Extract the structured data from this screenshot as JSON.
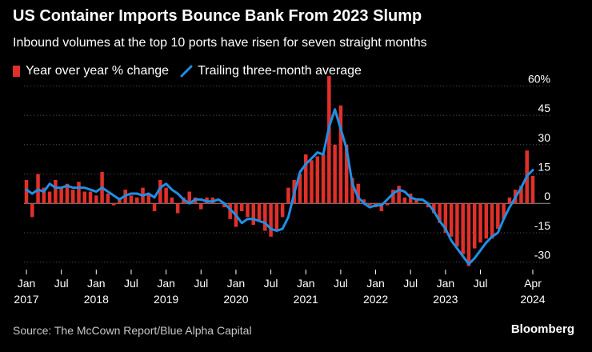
{
  "title": "US Container Imports Bounce Bank From 2023 Slump",
  "subtitle": "Inbound volumes at the top 10 ports have risen for seven straight months",
  "legend": {
    "bar_label": "Year over year % change",
    "line_label": "Trailing three-month average"
  },
  "source": "Source: The McCown Report/Blue Alpha Capital",
  "brand": "Bloomberg",
  "colors": {
    "background": "#000000",
    "bar": "#e0302a",
    "line": "#1f8fe5",
    "grid": "#555555",
    "text": "#ffffff"
  },
  "chart_data": {
    "type": "bar",
    "x": [
      "2017-01",
      "2017-02",
      "2017-03",
      "2017-04",
      "2017-05",
      "2017-06",
      "2017-07",
      "2017-08",
      "2017-09",
      "2017-10",
      "2017-11",
      "2017-12",
      "2018-01",
      "2018-02",
      "2018-03",
      "2018-04",
      "2018-05",
      "2018-06",
      "2018-07",
      "2018-08",
      "2018-09",
      "2018-10",
      "2018-11",
      "2018-12",
      "2019-01",
      "2019-02",
      "2019-03",
      "2019-04",
      "2019-05",
      "2019-06",
      "2019-07",
      "2019-08",
      "2019-09",
      "2019-10",
      "2019-11",
      "2019-12",
      "2020-01",
      "2020-02",
      "2020-03",
      "2020-04",
      "2020-05",
      "2020-06",
      "2020-07",
      "2020-08",
      "2020-09",
      "2020-10",
      "2020-11",
      "2020-12",
      "2021-01",
      "2021-02",
      "2021-03",
      "2021-04",
      "2021-05",
      "2021-06",
      "2021-07",
      "2021-08",
      "2021-09",
      "2021-10",
      "2021-11",
      "2021-12",
      "2022-01",
      "2022-02",
      "2022-03",
      "2022-04",
      "2022-05",
      "2022-06",
      "2022-07",
      "2022-08",
      "2022-09",
      "2022-10",
      "2022-11",
      "2022-12",
      "2023-01",
      "2023-02",
      "2023-03",
      "2023-04",
      "2023-05",
      "2023-06",
      "2023-07",
      "2023-08",
      "2023-09",
      "2023-10",
      "2023-11",
      "2023-12",
      "2024-01",
      "2024-02",
      "2024-03",
      "2024-04"
    ],
    "series": [
      {
        "name": "Year over year % change",
        "type": "bar",
        "values": [
          12,
          -7,
          15,
          8,
          6,
          12,
          8,
          10,
          7,
          11,
          6,
          6,
          4,
          16,
          5,
          -1,
          3,
          7,
          4,
          3,
          8,
          5,
          -4,
          12,
          8,
          3,
          -5,
          3,
          6,
          3,
          -3,
          3,
          3,
          0,
          -2,
          -8,
          -12,
          -4,
          -7,
          -11,
          -9,
          -14,
          -17,
          -14,
          -7,
          8,
          12,
          15,
          25,
          22,
          24,
          25,
          65,
          30,
          50,
          30,
          13,
          10,
          2,
          -1,
          -2,
          -4,
          -1,
          7,
          9,
          3,
          5,
          2,
          0,
          -2,
          -5,
          -10,
          -15,
          -17,
          -22,
          -26,
          -32,
          -23,
          -20,
          -18,
          -18,
          -13,
          -8,
          3,
          7,
          9,
          27,
          14
        ],
        "color": "#e0302a"
      },
      {
        "name": "Trailing three-month average",
        "type": "line",
        "values": [
          7,
          5,
          7,
          6,
          10,
          8,
          8,
          9,
          8,
          8,
          8,
          7,
          6,
          8,
          6,
          4,
          2,
          4,
          5,
          5,
          4,
          5,
          3,
          8,
          10,
          7,
          5,
          2,
          0,
          2,
          2,
          1,
          1,
          2,
          0,
          -3,
          -6,
          -10,
          -8,
          -8,
          -9,
          -10,
          -13,
          -14,
          -13,
          -7,
          5,
          16,
          20,
          23,
          26,
          25,
          39,
          48,
          38,
          28,
          10,
          3,
          0,
          -2,
          -1,
          -1,
          2,
          5,
          7,
          6,
          3,
          2,
          2,
          0,
          -4,
          -9,
          -13,
          -19,
          -23,
          -27,
          -31,
          -28,
          -24,
          -20,
          -17,
          -15,
          -8,
          -2,
          3,
          8,
          14,
          17
        ],
        "color": "#1f8fe5"
      }
    ],
    "x_ticks": [
      {
        "month": "Jan",
        "year": "2017"
      },
      {
        "month": "Jul",
        "year": ""
      },
      {
        "month": "Jan",
        "year": "2018"
      },
      {
        "month": "Jul",
        "year": ""
      },
      {
        "month": "Jan",
        "year": "2019"
      },
      {
        "month": "Jul",
        "year": ""
      },
      {
        "month": "Jan",
        "year": "2020"
      },
      {
        "month": "Jul",
        "year": ""
      },
      {
        "month": "Jan",
        "year": "2021"
      },
      {
        "month": "Jul",
        "year": ""
      },
      {
        "month": "Jan",
        "year": "2022"
      },
      {
        "month": "Jul",
        "year": ""
      },
      {
        "month": "Jan",
        "year": "2023"
      },
      {
        "month": "Jul",
        "year": ""
      },
      {
        "month": "Apr",
        "year": "2024"
      }
    ],
    "x_tick_index": [
      0,
      6,
      12,
      18,
      24,
      30,
      36,
      42,
      48,
      54,
      60,
      66,
      72,
      78,
      87
    ],
    "y_ticks": [
      "60%",
      "45",
      "30",
      "15",
      "0",
      "-15",
      "-30"
    ],
    "y_tick_values": [
      60,
      45,
      30,
      15,
      0,
      -15,
      -30
    ],
    "ylim": [
      -33,
      63
    ],
    "y_axis_side": "right",
    "grid": true
  }
}
